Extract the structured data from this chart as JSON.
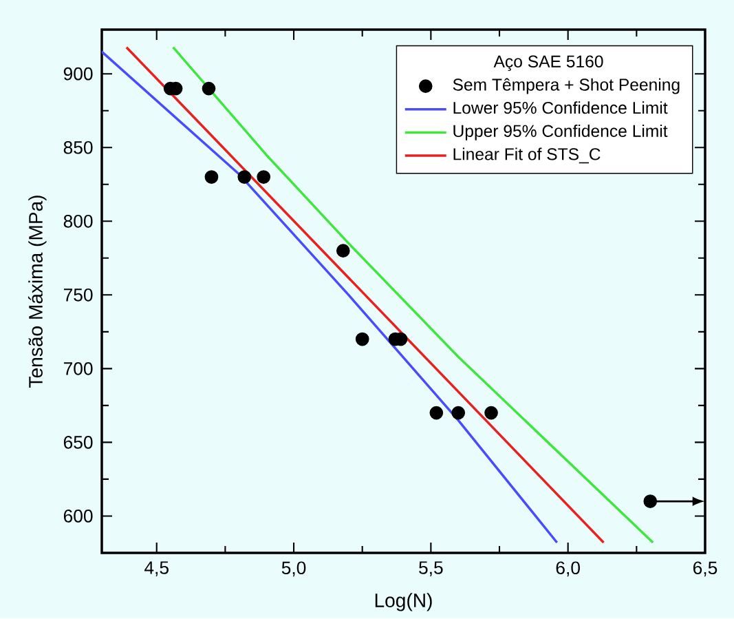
{
  "chart_data": {
    "type": "scatter",
    "xlabel": "Log(N)",
    "ylabel": "Tensão Máxima (MPa)",
    "legend_title": "Aço SAE 5160",
    "xlim": [
      4.3,
      6.5
    ],
    "ylim": [
      575,
      930
    ],
    "xticks": [
      {
        "value": 4.5,
        "label": "4,5"
      },
      {
        "value": 5.0,
        "label": "5,0"
      },
      {
        "value": 5.5,
        "label": "5,5"
      },
      {
        "value": 6.0,
        "label": "6,0"
      },
      {
        "value": 6.5,
        "label": "6,5"
      }
    ],
    "yticks": [
      600,
      650,
      700,
      750,
      800,
      850,
      900
    ],
    "legend": "top right",
    "grid": false,
    "series": [
      {
        "name": "Sem Têmpera + Shot Peening",
        "marker": "circle",
        "color": "#000000",
        "x": [
          4.55,
          4.57,
          4.69,
          4.7,
          4.82,
          4.89,
          5.18,
          5.25,
          5.37,
          5.39,
          5.52,
          5.6,
          5.72,
          6.3
        ],
        "values": [
          890,
          890,
          890,
          830,
          830,
          830,
          780,
          720,
          720,
          720,
          670,
          670,
          670,
          610
        ]
      },
      {
        "name": "Lower 95% Confidence Limit",
        "type": "line",
        "marker": "none",
        "color": "#4a4aff",
        "x": [
          4.3,
          4.8,
          5.2,
          5.6,
          5.96
        ],
        "values": [
          915,
          832,
          750,
          665,
          582
        ]
      },
      {
        "name": "Upper 95% Confidence Limit",
        "type": "line",
        "marker": "none",
        "color": "#3ee63e",
        "x": [
          4.56,
          4.9,
          5.2,
          5.6,
          6.31
        ],
        "values": [
          918,
          845,
          785,
          708,
          582
        ]
      },
      {
        "name": "Linear Fit of STS_C",
        "type": "line",
        "marker": "none",
        "color": "#e82020",
        "x": [
          4.39,
          6.13
        ],
        "values": [
          918,
          582
        ]
      }
    ]
  }
}
